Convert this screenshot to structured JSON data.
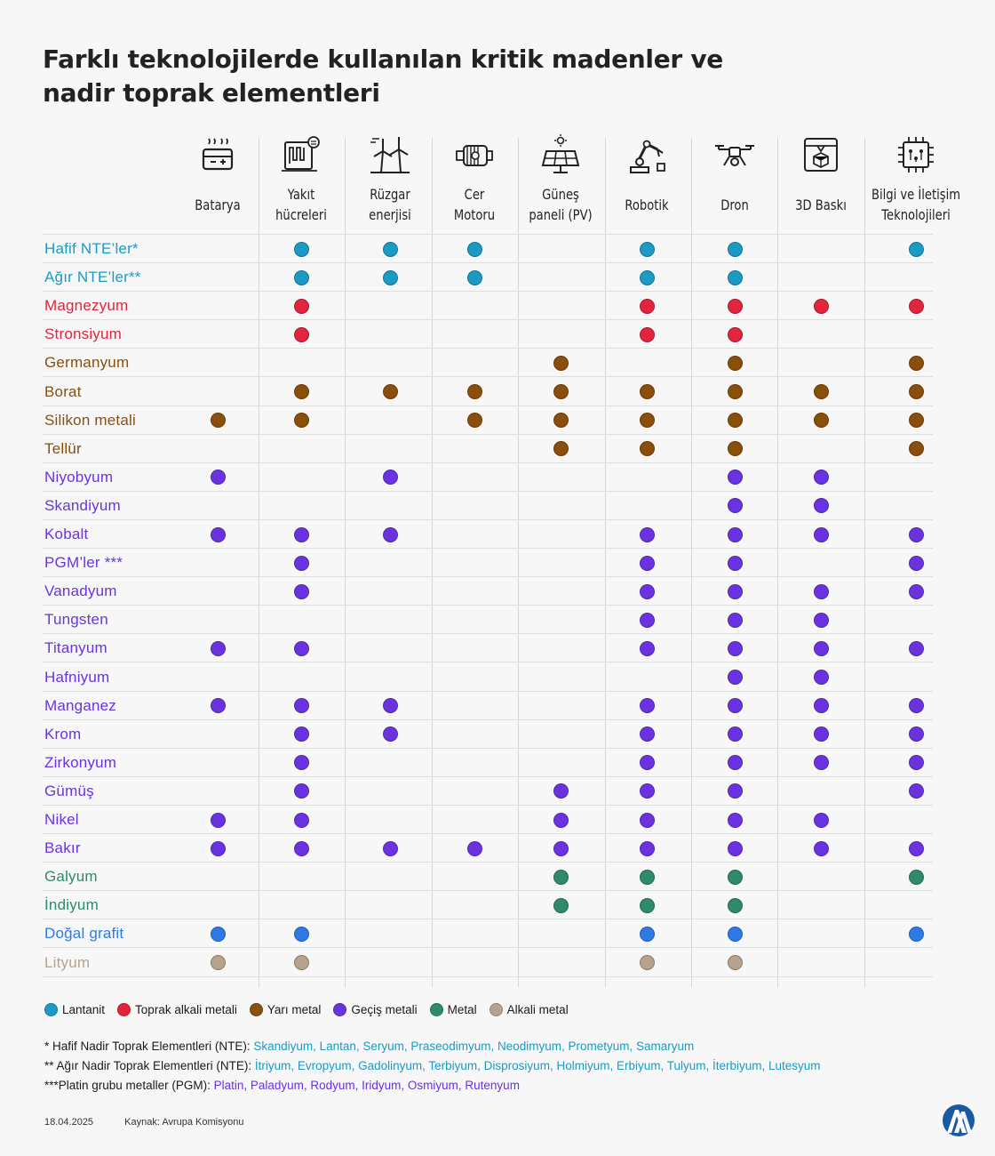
{
  "title_lines": [
    "Farklı teknolojilerde kullanılan kritik madenler ve",
    "nadir toprak elementleri"
  ],
  "colors": {
    "Lantanit": "#1c9ac4",
    "Toprak alkali metali": "#e1253c",
    "Yarı metal": "#8a4f0c",
    "Geçiş metali": "#6a33e2",
    "Metal": "#2f8a6a",
    "Alkali metal": "#b5a48b",
    "Doğal grafit": "#2d7ae6"
  },
  "chart_data": {
    "type": "table",
    "columns": [
      {
        "lines": [
          "Batarya"
        ],
        "icon": "battery-icon"
      },
      {
        "lines": [
          "Yakıt",
          "hücreleri"
        ],
        "icon": "fuel-cell-icon"
      },
      {
        "lines": [
          "Rüzgar",
          "enerjisi"
        ],
        "icon": "wind-turbine-icon"
      },
      {
        "lines": [
          "Cer",
          "Motoru"
        ],
        "icon": "traction-motor-icon"
      },
      {
        "lines": [
          "Güneş",
          "paneli (PV)"
        ],
        "icon": "solar-panel-icon"
      },
      {
        "lines": [
          "Robotik"
        ],
        "icon": "robot-arm-icon"
      },
      {
        "lines": [
          "Dron"
        ],
        "icon": "drone-icon"
      },
      {
        "lines": [
          "3D Baskı"
        ],
        "icon": "3d-printer-icon"
      },
      {
        "lines": [
          "Bilgi ve İletişim",
          "Teknolojileri"
        ],
        "icon": "chip-icon"
      }
    ],
    "rows": [
      {
        "name": "Hafif NTE’ler*",
        "group": "Lantanit",
        "cols": [
          1,
          2,
          3,
          5,
          6,
          8
        ]
      },
      {
        "name": "Ağır NTE’ler**",
        "group": "Lantanit",
        "cols": [
          1,
          2,
          3,
          5,
          6
        ]
      },
      {
        "name": "Magnezyum",
        "group": "Toprak alkali metali",
        "cols": [
          1,
          5,
          6,
          7,
          8
        ]
      },
      {
        "name": "Stronsiyum",
        "group": "Toprak alkali metali",
        "cols": [
          1,
          5,
          6
        ]
      },
      {
        "name": "Germanyum",
        "group": "Yarı metal",
        "cols": [
          4,
          6,
          8
        ]
      },
      {
        "name": "Borat",
        "group": "Yarı metal",
        "cols": [
          1,
          2,
          3,
          4,
          5,
          6,
          7,
          8
        ]
      },
      {
        "name": "Silikon metali",
        "group": "Yarı metal",
        "cols": [
          0,
          1,
          3,
          4,
          5,
          6,
          7,
          8
        ]
      },
      {
        "name": "Tellür",
        "group": "Yarı metal",
        "cols": [
          4,
          5,
          6,
          8
        ]
      },
      {
        "name": "Niyobyum",
        "group": "Geçiş metali",
        "cols": [
          0,
          2,
          6,
          7
        ]
      },
      {
        "name": "Skandiyum",
        "group": "Geçiş metali",
        "cols": [
          6,
          7
        ]
      },
      {
        "name": "Kobalt",
        "group": "Geçiş metali",
        "cols": [
          0,
          1,
          2,
          5,
          6,
          7,
          8
        ]
      },
      {
        "name": "PGM’ler ***",
        "group": "Geçiş metali",
        "cols": [
          1,
          5,
          6,
          8
        ]
      },
      {
        "name": "Vanadyum",
        "group": "Geçiş metali",
        "cols": [
          1,
          5,
          6,
          7,
          8
        ]
      },
      {
        "name": "Tungsten",
        "group": "Geçiş metali",
        "cols": [
          5,
          6,
          7
        ]
      },
      {
        "name": "Titanyum",
        "group": "Geçiş metali",
        "cols": [
          0,
          1,
          5,
          6,
          7,
          8
        ]
      },
      {
        "name": "Hafniyum",
        "group": "Geçiş metali",
        "cols": [
          6,
          7
        ]
      },
      {
        "name": "Manganez",
        "group": "Geçiş metali",
        "cols": [
          0,
          1,
          2,
          5,
          6,
          7,
          8
        ]
      },
      {
        "name": "Krom",
        "group": "Geçiş metali",
        "cols": [
          1,
          2,
          5,
          6,
          7,
          8
        ]
      },
      {
        "name": "Zirkonyum",
        "group": "Geçiş metali",
        "cols": [
          1,
          5,
          6,
          7,
          8
        ]
      },
      {
        "name": "Gümüş",
        "group": "Geçiş metali",
        "cols": [
          1,
          4,
          5,
          6,
          8
        ]
      },
      {
        "name": "Nikel",
        "group": "Geçiş metali",
        "cols": [
          0,
          1,
          4,
          5,
          6,
          7
        ]
      },
      {
        "name": "Bakır",
        "group": "Geçiş metali",
        "cols": [
          0,
          1,
          2,
          3,
          4,
          5,
          6,
          7,
          8
        ]
      },
      {
        "name": "Galyum",
        "group": "Metal",
        "cols": [
          4,
          5,
          6,
          8
        ]
      },
      {
        "name": "İndiyum",
        "group": "Metal",
        "cols": [
          4,
          5,
          6
        ]
      },
      {
        "name": "Doğal grafit",
        "group": "Doğal grafit",
        "cols": [
          0,
          1,
          5,
          6,
          8
        ]
      },
      {
        "name": "Lityum",
        "group": "Alkali metal",
        "cols": [
          0,
          1,
          5,
          6
        ]
      }
    ]
  },
  "legend": [
    "Lantanit",
    "Toprak alkali metali",
    "Yarı metal",
    "Geçiş metali",
    "Metal",
    "Alkali metal"
  ],
  "notes": [
    {
      "label": "* Hafif Nadir Toprak Elementleri (NTE): ",
      "items": "Skandiyum, Lantan, Seryum, Praseodimyum, Neodimyum, Prometyum, Samaryum",
      "color": "#1c9ac4"
    },
    {
      "label": "** Ağır Nadir Toprak Elementleri (NTE): ",
      "items": " İtriyum, Evropyum, Gadolinyum, Terbiyum, Disprosiyum, Holmiyum, Erbiyum, Tulyum, İterbiyum, Lutesyum",
      "color": "#1c9ac4"
    },
    {
      "label": "***Platin grubu metaller (PGM): ",
      "items": "Platin, Paladyum, Rodyum, Iridyum, Osmiyum, Rutenyum",
      "color": "#6a33e2"
    }
  ],
  "footer": {
    "date": "18.04.2025",
    "source": "Kaynak: Avrupa Komisyonu"
  },
  "logo_text": "AA"
}
